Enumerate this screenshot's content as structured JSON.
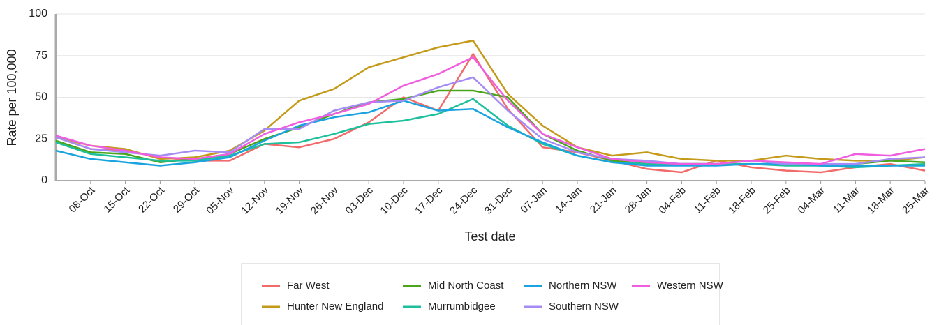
{
  "chart_data": {
    "type": "line",
    "y_label": "Rate per 100,000",
    "x_label": "Test date",
    "x": [
      null,
      "08-Oct",
      "15-Oct",
      "22-Oct",
      "29-Oct",
      "05-Nov",
      "12-Nov",
      "19-Nov",
      "26-Nov",
      "03-Dec",
      "10-Dec",
      "17-Dec",
      "24-Dec",
      "31-Dec",
      "07-Jan",
      "14-Jan",
      "21-Jan",
      "28-Jan",
      "04-Feb",
      "11-Feb",
      "18-Feb",
      "25-Feb",
      "04-Mar",
      "11-Mar",
      "18-Mar",
      "25-Mar"
    ],
    "ylim": [
      0,
      100
    ],
    "yticks": [
      0,
      25,
      50,
      75,
      100
    ],
    "grid": true,
    "series": [
      {
        "name": "Far West",
        "color": "#f26b6b",
        "values": [
          26,
          19,
          18,
          14,
          12,
          12,
          22,
          20,
          25,
          35,
          50,
          42,
          76,
          43,
          20,
          17,
          12,
          7,
          5,
          12,
          8,
          6,
          5,
          8,
          10,
          6
        ]
      },
      {
        "name": "Hunter New England",
        "color": "#c49a1a",
        "values": [
          26,
          21,
          19,
          13,
          14,
          18,
          30,
          48,
          55,
          68,
          74,
          80,
          84,
          52,
          33,
          20,
          15,
          17,
          13,
          12,
          12,
          15,
          13,
          12,
          12,
          14
        ]
      },
      {
        "name": "Mid North Coast",
        "color": "#4aa51c",
        "values": [
          24,
          17,
          16,
          11,
          13,
          16,
          25,
          32,
          40,
          47,
          49,
          54,
          54,
          50,
          28,
          18,
          12,
          10,
          10,
          10,
          12,
          10,
          9,
          10,
          12,
          11
        ]
      },
      {
        "name": "Murrumbidgee",
        "color": "#1dbf9c",
        "values": [
          23,
          16,
          14,
          12,
          12,
          15,
          22,
          23,
          28,
          34,
          36,
          40,
          49,
          33,
          22,
          15,
          11,
          10,
          10,
          10,
          10,
          9,
          9,
          8,
          9,
          10
        ]
      },
      {
        "name": "Northern NSW",
        "color": "#1aa3de",
        "values": [
          18,
          13,
          11,
          9,
          11,
          14,
          24,
          33,
          38,
          41,
          48,
          42,
          43,
          32,
          23,
          15,
          11,
          9,
          9,
          9,
          10,
          10,
          9,
          9,
          9,
          9
        ]
      },
      {
        "name": "Southern NSW",
        "color": "#a58cf5",
        "values": [
          26,
          19,
          17,
          15,
          18,
          17,
          31,
          31,
          42,
          47,
          48,
          56,
          62,
          42,
          25,
          17,
          13,
          12,
          10,
          10,
          12,
          10,
          10,
          10,
          13,
          14
        ]
      },
      {
        "name": "Western NSW",
        "color": "#f05ee0",
        "values": [
          27,
          21,
          18,
          14,
          13,
          16,
          28,
          35,
          40,
          46,
          57,
          64,
          74,
          48,
          28,
          20,
          13,
          11,
          10,
          10,
          12,
          11,
          10,
          16,
          15,
          19
        ]
      }
    ]
  }
}
